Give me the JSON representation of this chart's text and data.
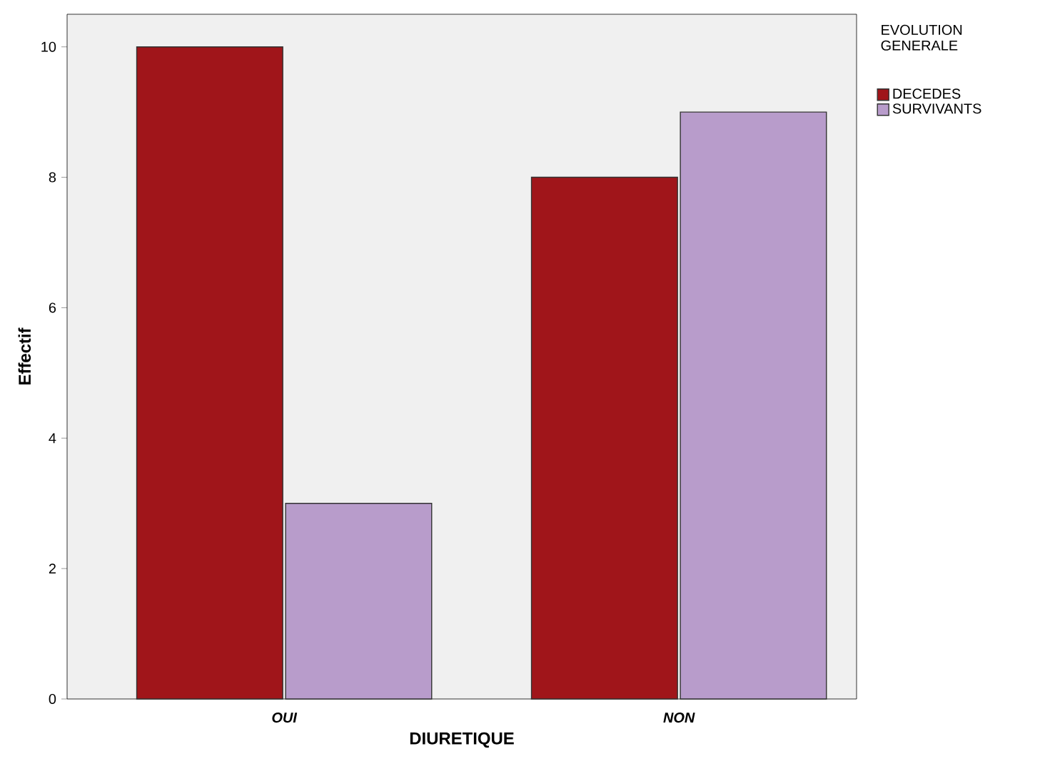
{
  "chart_data": {
    "type": "bar",
    "xlabel": "DIURETIQUE",
    "ylabel": "Effectif",
    "legend_title": "EVOLUTION GENERALE",
    "categories": [
      "OUI",
      "NON"
    ],
    "series": [
      {
        "name": "DECEDES",
        "color": "#a0151a",
        "values": [
          10,
          8
        ]
      },
      {
        "name": "SURVIVANTS",
        "color": "#b89ccb",
        "values": [
          3,
          9
        ]
      }
    ],
    "ylim": [
      0,
      10.5
    ],
    "yticks": [
      0,
      2,
      4,
      6,
      8,
      10
    ],
    "legend": "right",
    "grid": false
  }
}
